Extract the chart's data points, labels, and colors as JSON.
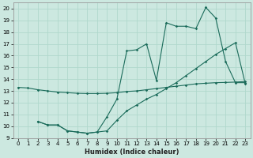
{
  "xlabel": "Humidex (Indice chaleur)",
  "bg_color": "#cce8e0",
  "grid_color": "#b0d8cc",
  "line_color": "#1a6b5a",
  "xlim": [
    -0.5,
    23.5
  ],
  "ylim": [
    9,
    20.5
  ],
  "xticks": [
    0,
    1,
    2,
    3,
    4,
    5,
    6,
    7,
    8,
    9,
    10,
    11,
    12,
    13,
    14,
    15,
    16,
    17,
    18,
    19,
    20,
    21,
    22,
    23
  ],
  "yticks": [
    9,
    10,
    11,
    12,
    13,
    14,
    15,
    16,
    17,
    18,
    19,
    20
  ],
  "line1_x": [
    0,
    1,
    2,
    3,
    4,
    5,
    6,
    7,
    8,
    9,
    10,
    11,
    12,
    13,
    14,
    15,
    16,
    17,
    18,
    19,
    20,
    21,
    22,
    23
  ],
  "line1_y": [
    13.3,
    13.25,
    13.1,
    13.0,
    12.9,
    12.85,
    12.8,
    12.78,
    12.78,
    12.8,
    12.85,
    12.95,
    13.0,
    13.1,
    13.2,
    13.3,
    13.4,
    13.5,
    13.6,
    13.65,
    13.7,
    13.72,
    13.75,
    13.8
  ],
  "line2_x": [
    2,
    3,
    4,
    5,
    6,
    7,
    8,
    9,
    10,
    11,
    12,
    13,
    14,
    15,
    16,
    17,
    18,
    19,
    20,
    21,
    22,
    23
  ],
  "line2_y": [
    10.4,
    10.1,
    10.1,
    9.6,
    9.5,
    9.4,
    9.5,
    10.8,
    12.3,
    16.4,
    16.5,
    17.0,
    13.9,
    18.8,
    18.5,
    18.5,
    18.3,
    20.1,
    19.2,
    15.5,
    13.7,
    13.7
  ],
  "line3_x": [
    2,
    3,
    4,
    5,
    6,
    7,
    8,
    9,
    10,
    11,
    12,
    13,
    14,
    15,
    16,
    17,
    18,
    19,
    20,
    21,
    22,
    23
  ],
  "line3_y": [
    10.4,
    10.1,
    10.1,
    9.6,
    9.5,
    9.4,
    9.5,
    9.6,
    10.5,
    11.3,
    11.8,
    12.3,
    12.7,
    13.2,
    13.7,
    14.3,
    14.9,
    15.5,
    16.1,
    16.6,
    17.1,
    13.6
  ]
}
